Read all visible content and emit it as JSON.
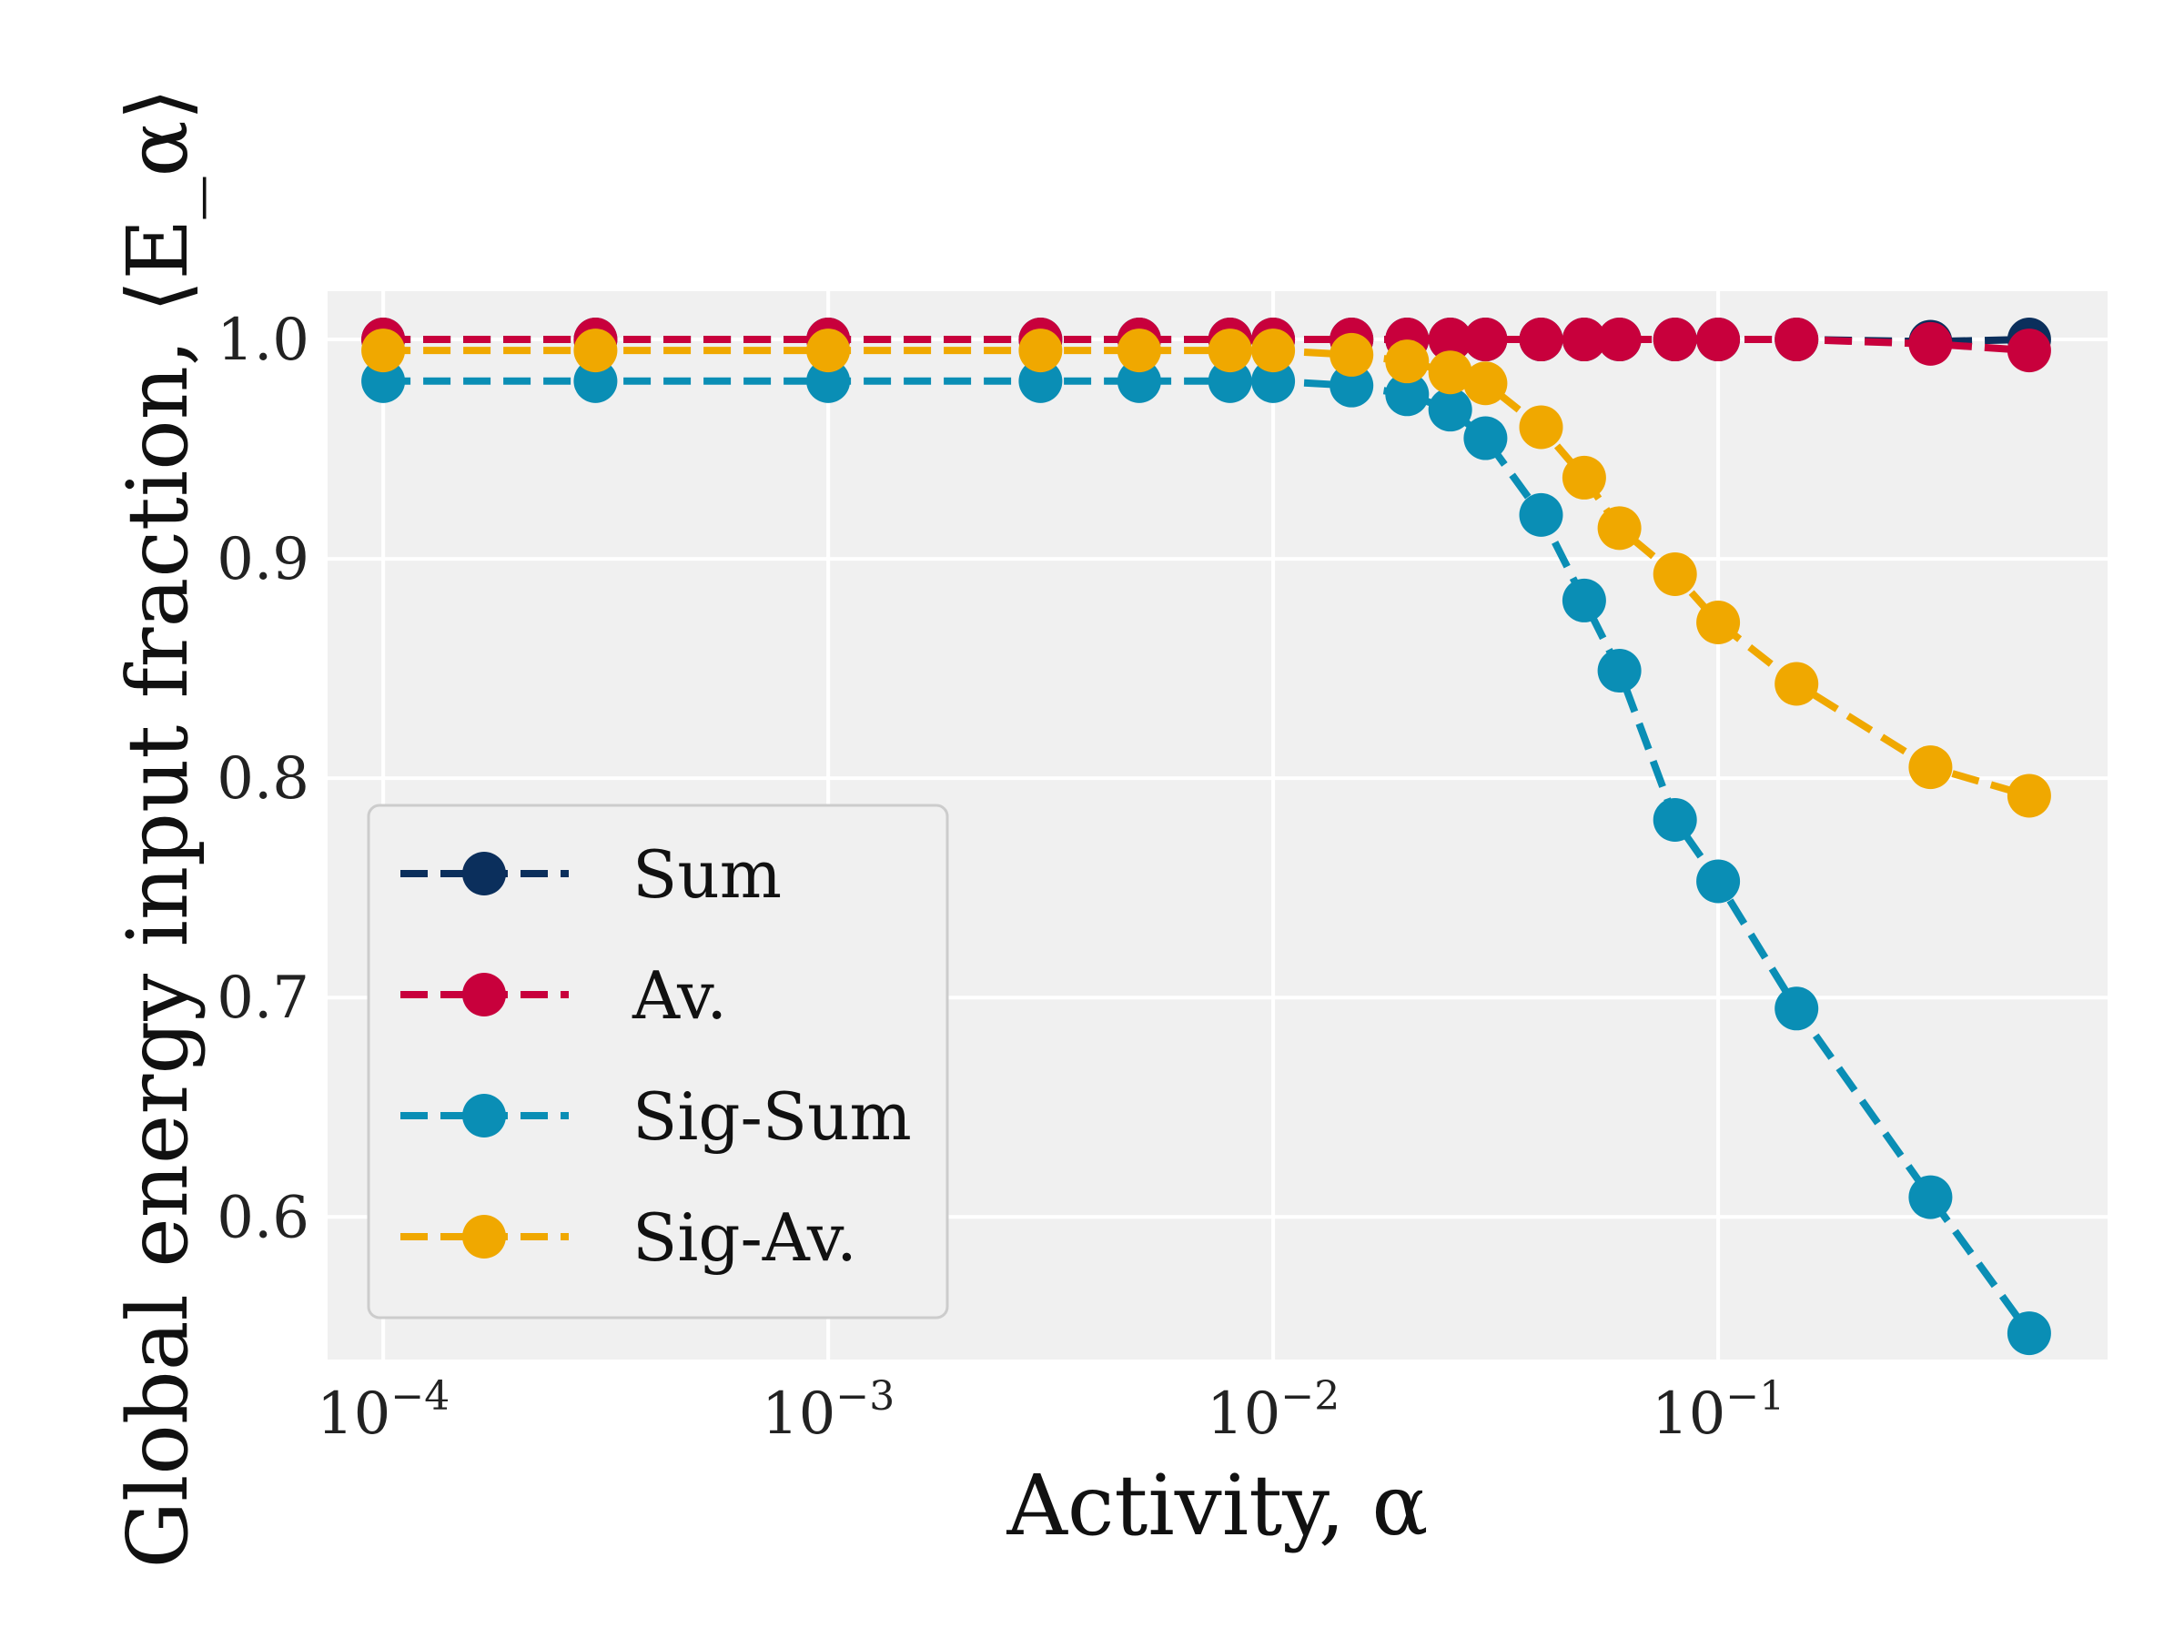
{
  "chart_data": {
    "type": "line",
    "xlabel": "Activity, α",
    "ylabel": "Global energy input fraction, ⟨E_α⟩",
    "xscale": "log",
    "xlim": [
      7.5e-05,
      0.75
    ],
    "ylim": [
      0.535,
      1.022
    ],
    "grid": true,
    "legend_position": "lower-left",
    "x_ticks": [
      {
        "value": 0.0001,
        "base": "10",
        "exp": "−4"
      },
      {
        "value": 0.001,
        "base": "10",
        "exp": "−3"
      },
      {
        "value": 0.01,
        "base": "10",
        "exp": "−2"
      },
      {
        "value": 0.1,
        "base": "10",
        "exp": "−1"
      }
    ],
    "y_ticks": [
      {
        "value": 0.6,
        "label": "0.6"
      },
      {
        "value": 0.7,
        "label": "0.7"
      },
      {
        "value": 0.8,
        "label": "0.8"
      },
      {
        "value": 0.9,
        "label": "0.9"
      },
      {
        "value": 1.0,
        "label": "1.0"
      }
    ],
    "x": [
      0.0001,
      0.0003,
      0.001,
      0.003,
      0.005,
      0.008,
      0.01,
      0.015,
      0.02,
      0.025,
      0.03,
      0.04,
      0.05,
      0.06,
      0.08,
      0.1,
      0.15,
      0.3,
      0.5
    ],
    "series": [
      {
        "name": "Sum",
        "color": "#0b2f5c",
        "values": [
          1.0,
          1.0,
          1.0,
          1.0,
          1.0,
          1.0,
          1.0,
          1.0,
          1.0,
          1.0,
          1.0,
          1.0,
          1.0,
          1.0,
          1.0,
          1.0,
          1.0,
          0.999,
          1.0
        ]
      },
      {
        "name": "Av.",
        "color": "#c8003c",
        "values": [
          1.0,
          1.0,
          1.0,
          1.0,
          1.0,
          1.0,
          1.0,
          1.0,
          1.0,
          1.0,
          1.0,
          1.0,
          1.0,
          1.0,
          1.0,
          1.0,
          1.0,
          0.998,
          0.995
        ]
      },
      {
        "name": "Sig-Sum",
        "color": "#0a8eb5",
        "values": [
          0.981,
          0.981,
          0.981,
          0.981,
          0.981,
          0.981,
          0.981,
          0.979,
          0.975,
          0.968,
          0.955,
          0.92,
          0.881,
          0.849,
          0.781,
          0.753,
          0.695,
          0.609,
          0.547
        ]
      },
      {
        "name": "Sig-Av.",
        "color": "#f0a800",
        "values": [
          0.995,
          0.995,
          0.995,
          0.995,
          0.995,
          0.995,
          0.995,
          0.993,
          0.99,
          0.985,
          0.98,
          0.96,
          0.937,
          0.914,
          0.893,
          0.871,
          0.843,
          0.805,
          0.792
        ]
      }
    ]
  }
}
